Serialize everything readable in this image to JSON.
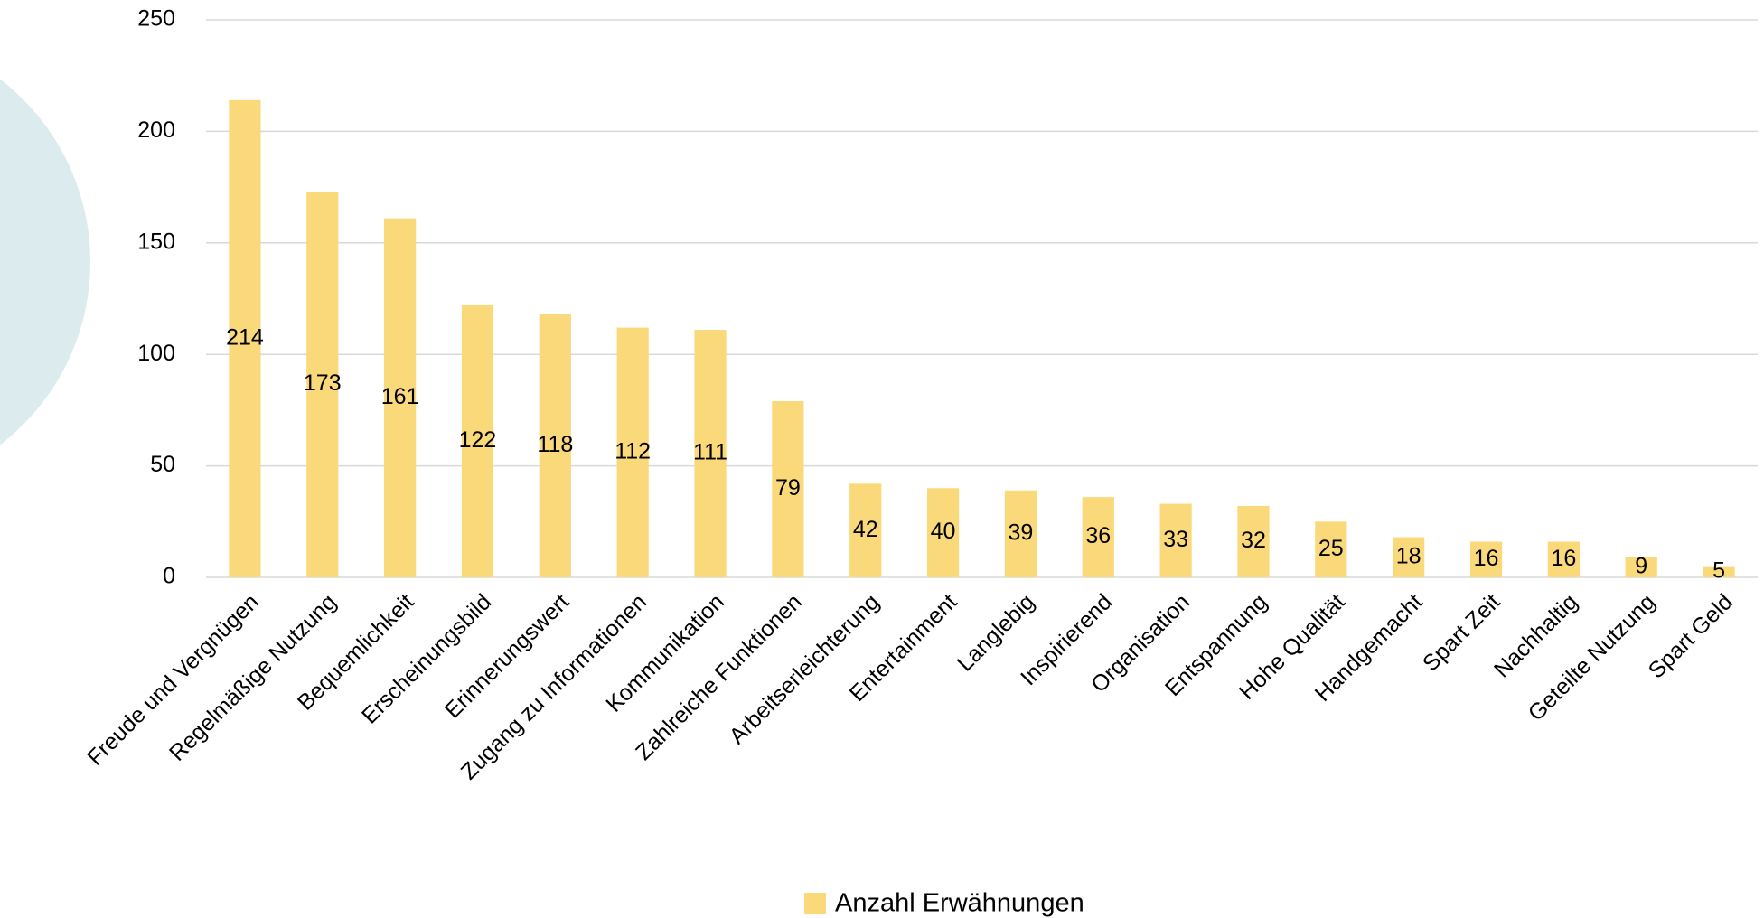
{
  "chart_data": {
    "type": "bar",
    "categories": [
      "Freude und Vergnügen",
      "Regelmäßige Nutzung",
      "Bequemlichkeit",
      "Erscheinungsbild",
      "Erinnerungswert",
      "Zugang zu Informationen",
      "Kommunikation",
      "Zahlreiche Funktionen",
      "Arbeitserleichterung",
      "Entertainment",
      "Langlebig",
      "Inspirierend",
      "Organisation",
      "Entspannung",
      "Hohe Qualität",
      "Handgemacht",
      "Spart Zeit",
      "Nachhaltig",
      "Geteilte Nutzung",
      "Spart Geld"
    ],
    "series": [
      {
        "name": "Anzahl Erwähnungen",
        "color": "#fad97a",
        "values": [
          214,
          173,
          161,
          122,
          118,
          112,
          111,
          79,
          42,
          40,
          39,
          36,
          33,
          32,
          25,
          18,
          16,
          16,
          9,
          5
        ]
      }
    ],
    "ylim": [
      0,
      250
    ],
    "yticks": [
      0,
      50,
      100,
      150,
      200,
      250
    ],
    "grid": true,
    "legend": "bottom"
  }
}
